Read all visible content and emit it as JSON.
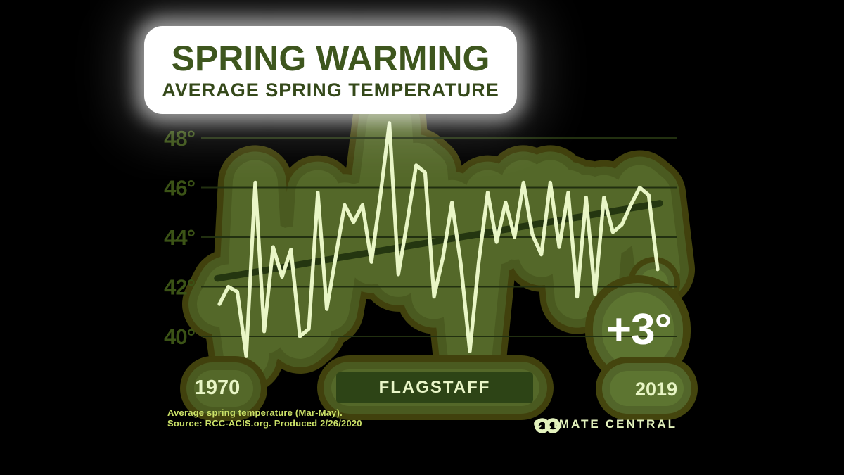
{
  "title": {
    "main": "SPRING WARMING",
    "subtitle": "AVERAGE SPRING TEMPERATURE"
  },
  "labels": {
    "start_year": "1970",
    "end_year": "2019",
    "location": "FLAGSTAFF",
    "trend_badge": "+3°"
  },
  "footer": {
    "note_line1": "Average spring temperature (Mar-May).",
    "note_line2": "Source: RCC-ACIS.org. Produced 2/26/2020",
    "brand_left": "CLIMATE",
    "brand_right": "CENTRAL"
  },
  "colors": {
    "background": "#000000",
    "data_line": "#e9f6c6",
    "trend_line": "#243610",
    "glow_outer": "#41410d",
    "glow_mid": "#4a5a20",
    "glow_inner": "#546829",
    "badge_glow_outer": "#44450e",
    "badge_glow_mid": "#52652a",
    "badge_glow_inner": "#5d7531",
    "grid_line": "#223010",
    "axis_label": "#3b5316",
    "title_text": "#3e561e",
    "pill_fill": "#2d4416",
    "pale_text": "#e8f5c5",
    "footer_text": "#cbe168",
    "badge_text": "#ffffff"
  },
  "chart_data": {
    "type": "line",
    "title": "Spring Warming",
    "subtitle": "Average Spring Temperature",
    "location": "Flagstaff",
    "x_range": [
      1970,
      2019
    ],
    "years": [
      1970,
      1971,
      1972,
      1973,
      1974,
      1975,
      1976,
      1977,
      1978,
      1979,
      1980,
      1981,
      1982,
      1983,
      1984,
      1985,
      1986,
      1987,
      1988,
      1989,
      1990,
      1991,
      1992,
      1993,
      1994,
      1995,
      1996,
      1997,
      1998,
      1999,
      2000,
      2001,
      2002,
      2003,
      2004,
      2005,
      2006,
      2007,
      2008,
      2009,
      2010,
      2011,
      2012,
      2013,
      2014,
      2015,
      2016,
      2017,
      2018,
      2019
    ],
    "series": [
      {
        "name": "Average spring temperature (Mar-May), °F",
        "values": [
          41.3,
          42.0,
          41.8,
          39.2,
          46.2,
          40.2,
          43.6,
          42.4,
          43.5,
          40.0,
          40.3,
          45.8,
          41.1,
          43.2,
          45.3,
          44.6,
          45.3,
          43.0,
          45.7,
          48.6,
          42.5,
          44.6,
          46.9,
          46.6,
          41.6,
          43.2,
          45.4,
          42.9,
          39.4,
          43.0,
          45.8,
          43.8,
          45.4,
          44.0,
          46.2,
          44.1,
          43.3,
          46.2,
          43.6,
          45.8,
          41.6,
          45.6,
          41.7,
          45.6,
          44.2,
          44.5,
          45.3,
          46.0,
          45.7,
          42.7
        ]
      }
    ],
    "trend_line": {
      "type": "linear",
      "start_value": 42.35,
      "end_value": 45.35,
      "change_label": "+3°"
    },
    "y_ticks": [
      {
        "value": 48,
        "label": "48°"
      },
      {
        "value": 46,
        "label": "46°"
      },
      {
        "value": 44,
        "label": "44°"
      },
      {
        "value": 42,
        "label": "42°"
      },
      {
        "value": 40,
        "label": "40°"
      }
    ],
    "ylim": [
      38.6,
      49.2
    ],
    "grid": "horizontal-only",
    "legend": "none"
  }
}
